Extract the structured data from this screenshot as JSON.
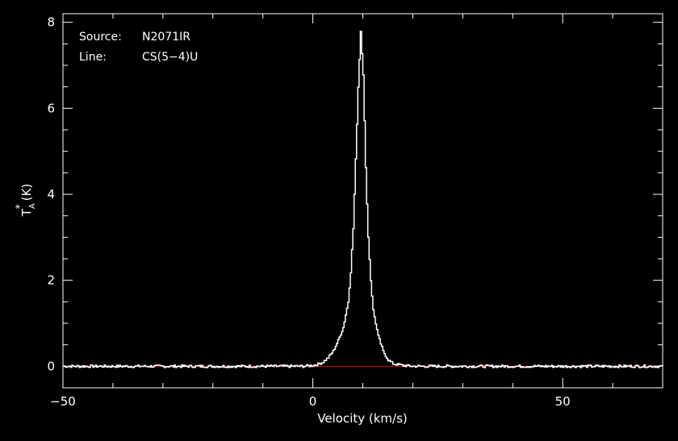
{
  "chart_data": {
    "type": "line",
    "title": "",
    "info": {
      "source_label": "Source:",
      "source_value": "N2071IR",
      "line_label": "Line:",
      "line_value": "CS(5−4)U"
    },
    "xlabel": "Velocity (km/s)",
    "ylabel": {
      "main": "T",
      "superscript": "*",
      "subscript": "A",
      "unit": "(K)"
    },
    "xlim": [
      -50,
      70
    ],
    "ylim": [
      -0.5,
      8.2
    ],
    "x_ticks": [
      {
        "value": -50,
        "label": "−50"
      },
      {
        "value": 0,
        "label": "0"
      },
      {
        "value": 50,
        "label": "50"
      }
    ],
    "y_ticks": [
      {
        "value": 0,
        "label": "0"
      },
      {
        "value": 2,
        "label": "2"
      },
      {
        "value": 4,
        "label": "4"
      },
      {
        "value": 6,
        "label": "6"
      },
      {
        "value": 8,
        "label": "8"
      }
    ],
    "baseline": {
      "y": 0,
      "color": "#cc0000"
    },
    "series": [
      {
        "color": "#ffffff",
        "step": true,
        "points": [
          [
            -50,
            0.0
          ],
          [
            -40,
            0.0
          ],
          [
            -30,
            0.0
          ],
          [
            -20,
            0.0
          ],
          [
            -10,
            0.0
          ],
          [
            -2,
            0.0
          ],
          [
            0,
            0.02
          ],
          [
            1,
            0.05
          ],
          [
            2,
            0.1
          ],
          [
            3,
            0.2
          ],
          [
            4,
            0.35
          ],
          [
            5,
            0.6
          ],
          [
            6,
            0.9
          ],
          [
            7,
            1.5
          ],
          [
            7.5,
            2.2
          ],
          [
            8,
            3.2
          ],
          [
            8.5,
            4.8
          ],
          [
            9,
            6.5
          ],
          [
            9.5,
            7.8
          ],
          [
            10,
            6.8
          ],
          [
            10.5,
            4.6
          ],
          [
            11,
            3.0
          ],
          [
            11.5,
            2.0
          ],
          [
            12,
            1.3
          ],
          [
            13,
            0.7
          ],
          [
            14,
            0.35
          ],
          [
            15,
            0.15
          ],
          [
            16,
            0.06
          ],
          [
            18,
            0.02
          ],
          [
            20,
            0.0
          ],
          [
            30,
            0.0
          ],
          [
            40,
            0.0
          ],
          [
            50,
            0.0
          ],
          [
            60,
            0.0
          ],
          [
            70,
            0.0
          ]
        ]
      }
    ],
    "colors": {
      "background": "#000000",
      "axes": "#ffffff",
      "data": "#ffffff",
      "baseline": "#cc0000"
    }
  }
}
